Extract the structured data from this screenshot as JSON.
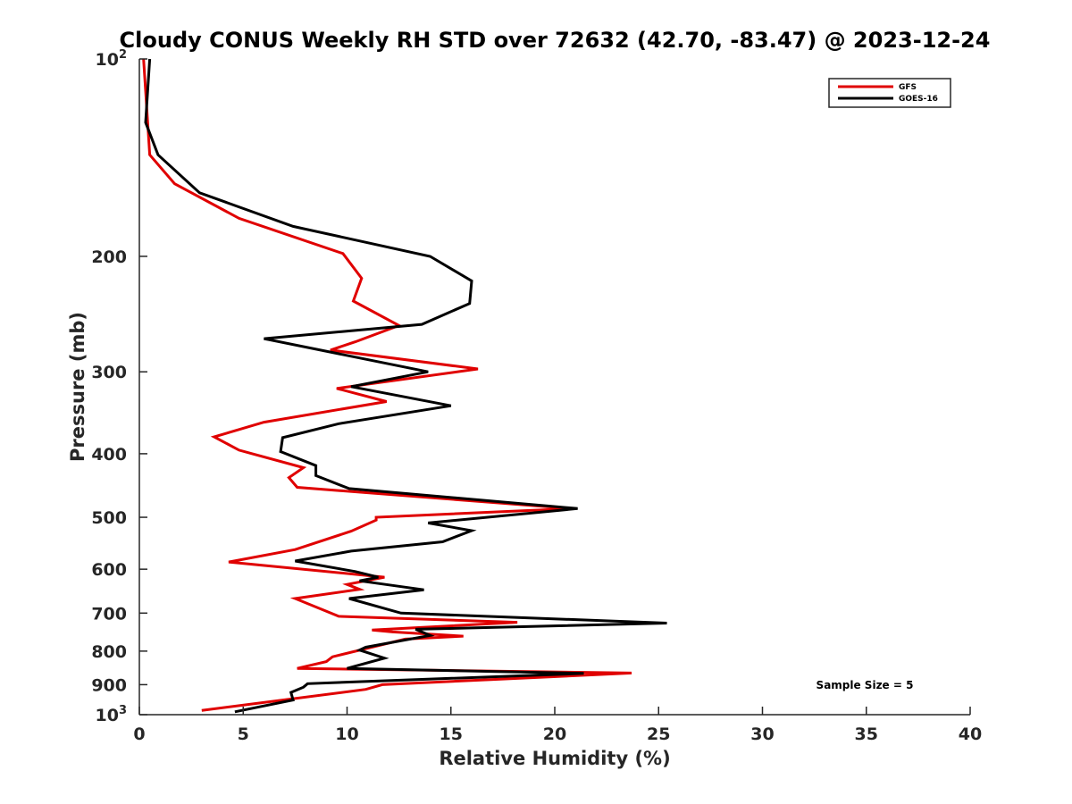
{
  "chart_data": {
    "type": "line",
    "title": "Cloudy CONUS Weekly RH STD over 72632 (42.70, -83.47) @ 2023-12-24",
    "xlabel": "Relative Humidity (%)",
    "ylabel": "Pressure (mb)",
    "xlim": [
      0,
      40
    ],
    "ylim": [
      100,
      1000
    ],
    "y_scale": "log",
    "y_reversed": true,
    "x_ticks": [
      "0",
      "5",
      "10",
      "15",
      "20",
      "25",
      "30",
      "35",
      "40"
    ],
    "y_ticks": [
      {
        "value": 100,
        "label": "10",
        "sup": "2"
      },
      {
        "value": 200,
        "label": "200"
      },
      {
        "value": 300,
        "label": "300"
      },
      {
        "value": 400,
        "label": "400"
      },
      {
        "value": 500,
        "label": "500"
      },
      {
        "value": 600,
        "label": "600"
      },
      {
        "value": 700,
        "label": "700"
      },
      {
        "value": 800,
        "label": "800"
      },
      {
        "value": 900,
        "label": "900"
      },
      {
        "value": 1000,
        "label": "10",
        "sup": "3"
      }
    ],
    "grid": false,
    "legend_position": "top-right",
    "annotation": "Sample Size = 5",
    "series": [
      {
        "name": "GFS",
        "color": "#e00000",
        "points": [
          [
            0.2,
            100
          ],
          [
            0.4,
            125
          ],
          [
            0.5,
            140
          ],
          [
            1.7,
            155
          ],
          [
            4.8,
            175
          ],
          [
            9.8,
            198
          ],
          [
            10.7,
            216
          ],
          [
            10.3,
            234
          ],
          [
            12.5,
            255
          ],
          [
            10.4,
            270
          ],
          [
            9.2,
            278
          ],
          [
            16.3,
            297
          ],
          [
            9.5,
            318
          ],
          [
            11.9,
            333
          ],
          [
            6.0,
            358
          ],
          [
            3.6,
            377
          ],
          [
            4.8,
            395
          ],
          [
            7.9,
            420
          ],
          [
            7.2,
            435
          ],
          [
            7.6,
            450
          ],
          [
            20.8,
            485
          ],
          [
            11.4,
            500
          ],
          [
            11.4,
            505
          ],
          [
            10.2,
            525
          ],
          [
            7.5,
            560
          ],
          [
            4.3,
            585
          ],
          [
            11.8,
            617
          ],
          [
            10.0,
            633
          ],
          [
            10.6,
            644
          ],
          [
            7.5,
            665
          ],
          [
            9.6,
            708
          ],
          [
            18.2,
            723
          ],
          [
            11.2,
            743
          ],
          [
            12.2,
            748
          ],
          [
            15.6,
            759
          ],
          [
            12.8,
            767
          ],
          [
            9.3,
            816
          ],
          [
            9.0,
            830
          ],
          [
            7.6,
            850
          ],
          [
            23.7,
            864
          ],
          [
            11.7,
            900
          ],
          [
            10.9,
            915
          ],
          [
            3.0,
            985
          ]
        ]
      },
      {
        "name": "GOES-16",
        "color": "#000000",
        "points": [
          [
            0.5,
            100
          ],
          [
            0.3,
            125
          ],
          [
            0.9,
            140
          ],
          [
            2.9,
            160
          ],
          [
            7.4,
            180
          ],
          [
            14.0,
            200
          ],
          [
            16.0,
            218
          ],
          [
            15.9,
            236
          ],
          [
            13.6,
            254
          ],
          [
            6.0,
            267
          ],
          [
            13.9,
            300
          ],
          [
            10.2,
            316
          ],
          [
            15.0,
            338
          ],
          [
            9.6,
            360
          ],
          [
            6.9,
            378
          ],
          [
            6.8,
            397
          ],
          [
            8.5,
            417
          ],
          [
            8.5,
            432
          ],
          [
            10.1,
            452
          ],
          [
            21.1,
            485
          ],
          [
            13.9,
            510
          ],
          [
            16.0,
            524
          ],
          [
            14.6,
            545
          ],
          [
            10.2,
            563
          ],
          [
            7.5,
            583
          ],
          [
            10.4,
            605
          ],
          [
            11.5,
            617
          ],
          [
            10.6,
            625
          ],
          [
            13.7,
            645
          ],
          [
            10.1,
            665
          ],
          [
            12.6,
            700
          ],
          [
            25.4,
            725
          ],
          [
            13.3,
            741
          ],
          [
            14.0,
            757
          ],
          [
            10.9,
            789
          ],
          [
            10.6,
            797
          ],
          [
            11.8,
            820
          ],
          [
            10.0,
            850
          ],
          [
            21.4,
            865
          ],
          [
            8.1,
            897
          ],
          [
            7.9,
            908
          ],
          [
            7.3,
            925
          ],
          [
            7.4,
            950
          ],
          [
            4.6,
            990
          ]
        ]
      }
    ]
  }
}
